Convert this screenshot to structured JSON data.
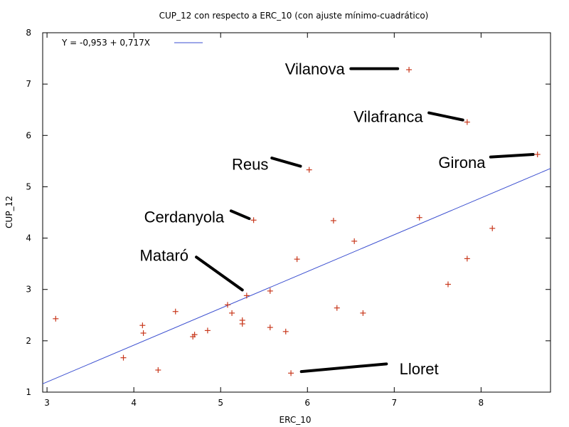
{
  "chart_data": {
    "type": "scatter",
    "title": "CUP_12 con respecto a ERC_10 (con ajuste mínimo-cuadrático)",
    "xlabel": "ERC_10",
    "ylabel": "CUP_12",
    "xlim": [
      2.95,
      8.8
    ],
    "ylim": [
      1,
      8
    ],
    "xticks": [
      "3",
      "4",
      "5",
      "6",
      "7",
      "8"
    ],
    "yticks": [
      "1",
      "2",
      "3",
      "4",
      "5",
      "6",
      "7",
      "8"
    ],
    "grid": false,
    "legend_position": "top-left",
    "colors": {
      "points": "#c8381c",
      "fit_line": "#3b4fd0"
    },
    "fit": {
      "intercept": -0.953,
      "slope": 0.717,
      "label": "Y = -0,953 + 0,717X"
    },
    "points": [
      {
        "x": 3.1,
        "y": 2.43
      },
      {
        "x": 3.88,
        "y": 1.67
      },
      {
        "x": 4.1,
        "y": 2.3
      },
      {
        "x": 4.11,
        "y": 2.15
      },
      {
        "x": 4.28,
        "y": 1.43
      },
      {
        "x": 4.48,
        "y": 2.57
      },
      {
        "x": 4.68,
        "y": 2.08
      },
      {
        "x": 4.7,
        "y": 2.12
      },
      {
        "x": 4.85,
        "y": 2.2
      },
      {
        "x": 5.08,
        "y": 2.7
      },
      {
        "x": 5.13,
        "y": 2.54
      },
      {
        "x": 5.25,
        "y": 2.33
      },
      {
        "x": 5.25,
        "y": 2.4
      },
      {
        "x": 5.3,
        "y": 2.88
      },
      {
        "x": 5.38,
        "y": 4.35
      },
      {
        "x": 5.57,
        "y": 2.97
      },
      {
        "x": 5.57,
        "y": 2.26
      },
      {
        "x": 5.75,
        "y": 2.18
      },
      {
        "x": 5.81,
        "y": 1.37
      },
      {
        "x": 5.88,
        "y": 3.59
      },
      {
        "x": 6.02,
        "y": 5.33
      },
      {
        "x": 6.3,
        "y": 4.34
      },
      {
        "x": 6.34,
        "y": 2.64
      },
      {
        "x": 6.54,
        "y": 3.94
      },
      {
        "x": 6.64,
        "y": 2.54
      },
      {
        "x": 7.17,
        "y": 7.28
      },
      {
        "x": 7.29,
        "y": 4.4
      },
      {
        "x": 7.62,
        "y": 3.1
      },
      {
        "x": 7.84,
        "y": 6.26
      },
      {
        "x": 7.84,
        "y": 3.6
      },
      {
        "x": 8.13,
        "y": 4.19
      },
      {
        "x": 8.65,
        "y": 5.63
      }
    ],
    "annotations": [
      {
        "text": "Vilanova",
        "point_index": 25,
        "text_anchor": "end",
        "label_at": {
          "x": 6.43,
          "y": 7.3
        },
        "line_from": {
          "x": 6.5,
          "y": 7.3
        },
        "line_to": {
          "x": 7.04,
          "y": 7.3
        }
      },
      {
        "text": "Vilafranca",
        "point_index": 28,
        "text_anchor": "end",
        "label_at": {
          "x": 7.33,
          "y": 6.37
        },
        "line_from": {
          "x": 7.4,
          "y": 6.44
        },
        "line_to": {
          "x": 7.79,
          "y": 6.3
        }
      },
      {
        "text": "Reus",
        "point_index": 20,
        "text_anchor": "end",
        "label_at": {
          "x": 5.55,
          "y": 5.44
        },
        "line_from": {
          "x": 5.59,
          "y": 5.56
        },
        "line_to": {
          "x": 5.92,
          "y": 5.4
        }
      },
      {
        "text": "Girona",
        "point_index": 31,
        "text_anchor": "end",
        "label_at": {
          "x": 8.05,
          "y": 5.48
        },
        "line_from": {
          "x": 8.11,
          "y": 5.58
        },
        "line_to": {
          "x": 8.6,
          "y": 5.63
        }
      },
      {
        "text": "Cerdanyola",
        "point_index": 14,
        "text_anchor": "end",
        "label_at": {
          "x": 5.04,
          "y": 4.42
        },
        "line_from": {
          "x": 5.12,
          "y": 4.53
        },
        "line_to": {
          "x": 5.33,
          "y": 4.38
        }
      },
      {
        "text": "Mataró",
        "point_index": 13,
        "text_anchor": "end",
        "label_at": {
          "x": 4.63,
          "y": 3.67
        },
        "line_from": {
          "x": 4.72,
          "y": 3.63
        },
        "line_to": {
          "x": 5.25,
          "y": 2.99
        }
      },
      {
        "text": "Lloret",
        "point_index": 18,
        "text_anchor": "start",
        "label_at": {
          "x": 7.06,
          "y": 1.46
        },
        "line_from": {
          "x": 5.93,
          "y": 1.4
        },
        "line_to": {
          "x": 6.91,
          "y": 1.55
        }
      }
    ]
  }
}
